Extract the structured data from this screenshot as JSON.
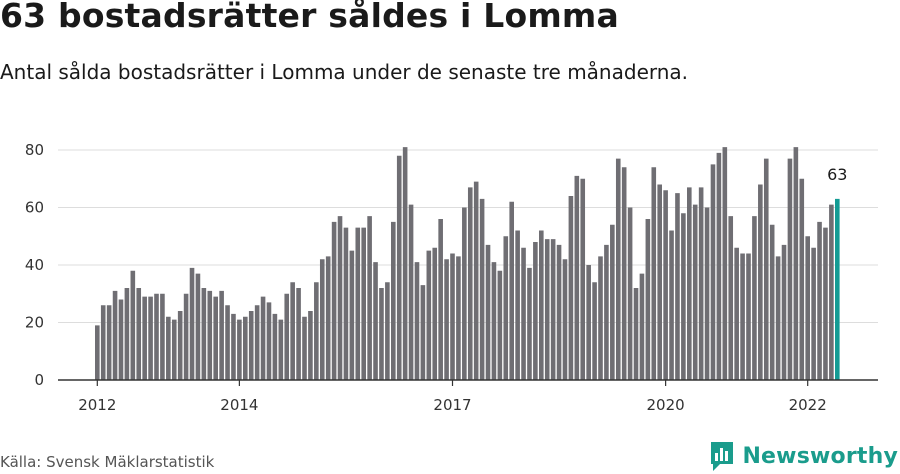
{
  "header": {
    "title": "63 bostadsrätter såldes i Lomma",
    "subtitle": "Antal sålda bostadsrätter i Lomma under de senaste tre månaderna."
  },
  "footer": {
    "source": "Källa: Svensk Mäklarstatistik",
    "brand": "Newsworthy",
    "brand_icon": "newsworthy-logo-icon"
  },
  "colors": {
    "bar": "#6f6e73",
    "highlight": "#139b94",
    "grid": "#dddddd",
    "axis": "#333333",
    "brand": "#1a9c8c"
  },
  "chart_data": {
    "type": "bar",
    "ylim": [
      0,
      80
    ],
    "yticks": [
      0,
      20,
      40,
      60,
      80
    ],
    "grid": true,
    "x_tick_labels": [
      {
        "label": "2012",
        "index": 0
      },
      {
        "label": "2014",
        "index": 24
      },
      {
        "label": "2017",
        "index": 60
      },
      {
        "label": "2020",
        "index": 96
      },
      {
        "label": "2022",
        "index": 120
      }
    ],
    "values": [
      19,
      26,
      26,
      31,
      28,
      32,
      38,
      32,
      29,
      29,
      30,
      30,
      22,
      21,
      24,
      30,
      39,
      37,
      32,
      31,
      29,
      31,
      26,
      23,
      21,
      22,
      24,
      26,
      29,
      27,
      23,
      21,
      30,
      34,
      32,
      22,
      24,
      34,
      42,
      43,
      55,
      57,
      53,
      45,
      53,
      53,
      57,
      41,
      32,
      34,
      55,
      78,
      81,
      61,
      41,
      33,
      45,
      46,
      56,
      42,
      44,
      43,
      60,
      67,
      69,
      63,
      47,
      41,
      38,
      50,
      62,
      52,
      46,
      39,
      48,
      52,
      49,
      49,
      47,
      42,
      64,
      71,
      70,
      40,
      34,
      43,
      47,
      54,
      77,
      74,
      60,
      32,
      37,
      56,
      74,
      68,
      66,
      52,
      65,
      58,
      67,
      61,
      67,
      60,
      75,
      79,
      81,
      57,
      46,
      44,
      44,
      57,
      68,
      77,
      54,
      43,
      47,
      77,
      81,
      70,
      50,
      46,
      55,
      53,
      61,
      63
    ],
    "highlight_index": 125,
    "highlight_label": "63"
  }
}
